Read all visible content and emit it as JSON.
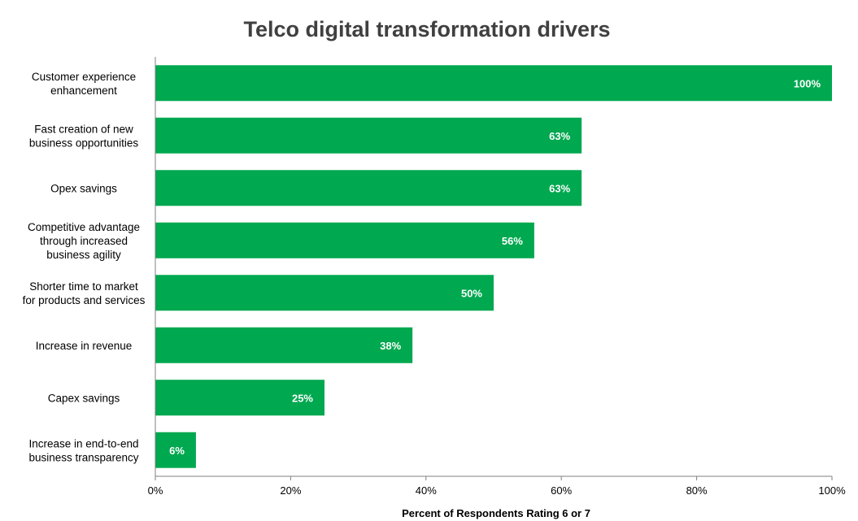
{
  "chart_data": {
    "type": "bar",
    "orientation": "horizontal",
    "title": "Telco digital transformation drivers",
    "xlabel": "Percent of Respondents Rating 6 or 7",
    "ylabel": "",
    "xlim": [
      0,
      100
    ],
    "ticks": [
      "0%",
      "20%",
      "40%",
      "60%",
      "80%",
      "100%"
    ],
    "tick_values": [
      0,
      20,
      40,
      60,
      80,
      100
    ],
    "categories": [
      [
        "Customer experience",
        "enhancement"
      ],
      [
        "Fast creation of new",
        "business opportunities"
      ],
      [
        "Opex savings"
      ],
      [
        "Competitive advantage",
        "through increased",
        "business agility"
      ],
      [
        "Shorter time to market",
        "for products and services"
      ],
      [
        "Increase in revenue"
      ],
      [
        "Capex savings"
      ],
      [
        "Increase in end-to-end",
        "business transparency"
      ]
    ],
    "values": [
      100,
      63,
      63,
      56,
      50,
      38,
      25,
      6
    ],
    "value_labels": [
      "100%",
      "63%",
      "63%",
      "56%",
      "50%",
      "38%",
      "25%",
      "6%"
    ],
    "bar_color": "#00A84F",
    "grid": false,
    "legend": "none"
  }
}
